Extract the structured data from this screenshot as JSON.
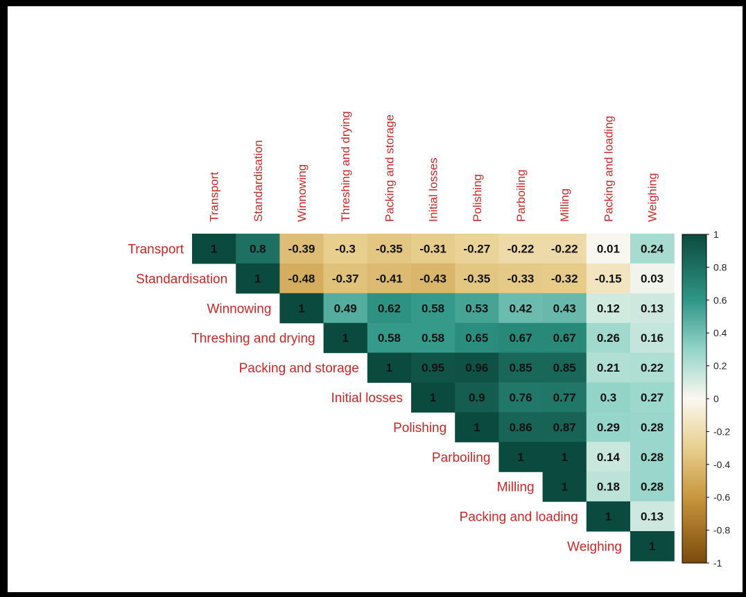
{
  "chart_data": {
    "type": "heatmap",
    "subtype": "correlation-upper-triangle",
    "variables": [
      "Transport",
      "Standardisation",
      "Winnowing",
      "Threshing and drying",
      "Packing and storage",
      "Initial losses",
      "Polishing",
      "Parboiling",
      "Milling",
      "Packing and loading",
      "Weighing"
    ],
    "rows": [
      {
        "variable": "Transport",
        "values": [
          "1",
          "0.8",
          "-0.39",
          "-0.3",
          "-0.35",
          "-0.31",
          "-0.27",
          "-0.22",
          "-0.22",
          "0.01",
          "0.24"
        ]
      },
      {
        "variable": "Standardisation",
        "values": [
          "1",
          "-0.48",
          "-0.37",
          "-0.41",
          "-0.43",
          "-0.35",
          "-0.33",
          "-0.32",
          "-0.15",
          "0.03"
        ]
      },
      {
        "variable": "Winnowing",
        "values": [
          "1",
          "0.49",
          "0.62",
          "0.58",
          "0.53",
          "0.42",
          "0.43",
          "0.12",
          "0.13"
        ]
      },
      {
        "variable": "Threshing and drying",
        "values": [
          "1",
          "0.58",
          "0.58",
          "0.65",
          "0.67",
          "0.67",
          "0.26",
          "0.16"
        ]
      },
      {
        "variable": "Packing and storage",
        "values": [
          "1",
          "0.95",
          "0.96",
          "0.85",
          "0.85",
          "0.21",
          "0.22"
        ]
      },
      {
        "variable": "Initial losses",
        "values": [
          "1",
          "0.9",
          "0.76",
          "0.77",
          "0.3",
          "0.27"
        ]
      },
      {
        "variable": "Polishing",
        "values": [
          "1",
          "0.86",
          "0.87",
          "0.29",
          "0.28"
        ]
      },
      {
        "variable": "Parboiling",
        "values": [
          "1",
          "1",
          "0.14",
          "0.28"
        ]
      },
      {
        "variable": "Milling",
        "values": [
          "1",
          "0.18",
          "0.28"
        ]
      },
      {
        "variable": "Packing and loading",
        "values": [
          "1",
          "0.13"
        ]
      },
      {
        "variable": "Weighing",
        "values": [
          "1"
        ]
      }
    ],
    "colorbar": {
      "range": [
        -1,
        1
      ],
      "ticks": [
        "1",
        "0.8",
        "0.6",
        "0.4",
        "0.2",
        "0",
        "-0.2",
        "-0.4",
        "-0.6",
        "-0.8",
        "-1"
      ],
      "colors": {
        "low": "#7a4a0b",
        "mid": "#ffffff",
        "high": "#0b4a3e"
      },
      "stops": [
        {
          "v": -1,
          "c": "#7a4a0b"
        },
        {
          "v": -0.6,
          "c": "#c8963e"
        },
        {
          "v": -0.3,
          "c": "#e8cf8e"
        },
        {
          "v": 0,
          "c": "#fbf8f0"
        },
        {
          "v": 0.3,
          "c": "#93d4c8"
        },
        {
          "v": 0.6,
          "c": "#2f9686"
        },
        {
          "v": 1,
          "c": "#0b4a3e"
        }
      ]
    },
    "colors": {
      "label": "#c62828",
      "value_text": "#111111"
    }
  }
}
